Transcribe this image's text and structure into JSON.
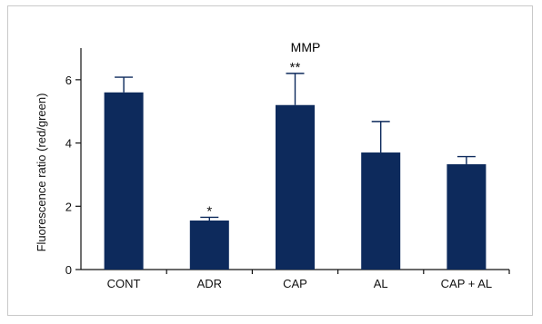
{
  "chart_data": {
    "type": "bar",
    "title": "MMP",
    "xlabel": "",
    "ylabel": "Fluorescence ratio (red/green)",
    "categories": [
      "CONT",
      "ADR",
      "CAP",
      "AL",
      "CAP + AL"
    ],
    "values": [
      5.6,
      1.55,
      5.2,
      3.7,
      3.33
    ],
    "errors": [
      0.48,
      0.1,
      1.0,
      0.98,
      0.24
    ],
    "annotations": [
      "",
      "*",
      "**",
      "",
      ""
    ],
    "yticks": [
      "0",
      "2",
      "4",
      "6"
    ],
    "ylim": [
      0,
      7
    ],
    "grid": false,
    "legend": "none",
    "bar_color": "#0d2a5c"
  }
}
